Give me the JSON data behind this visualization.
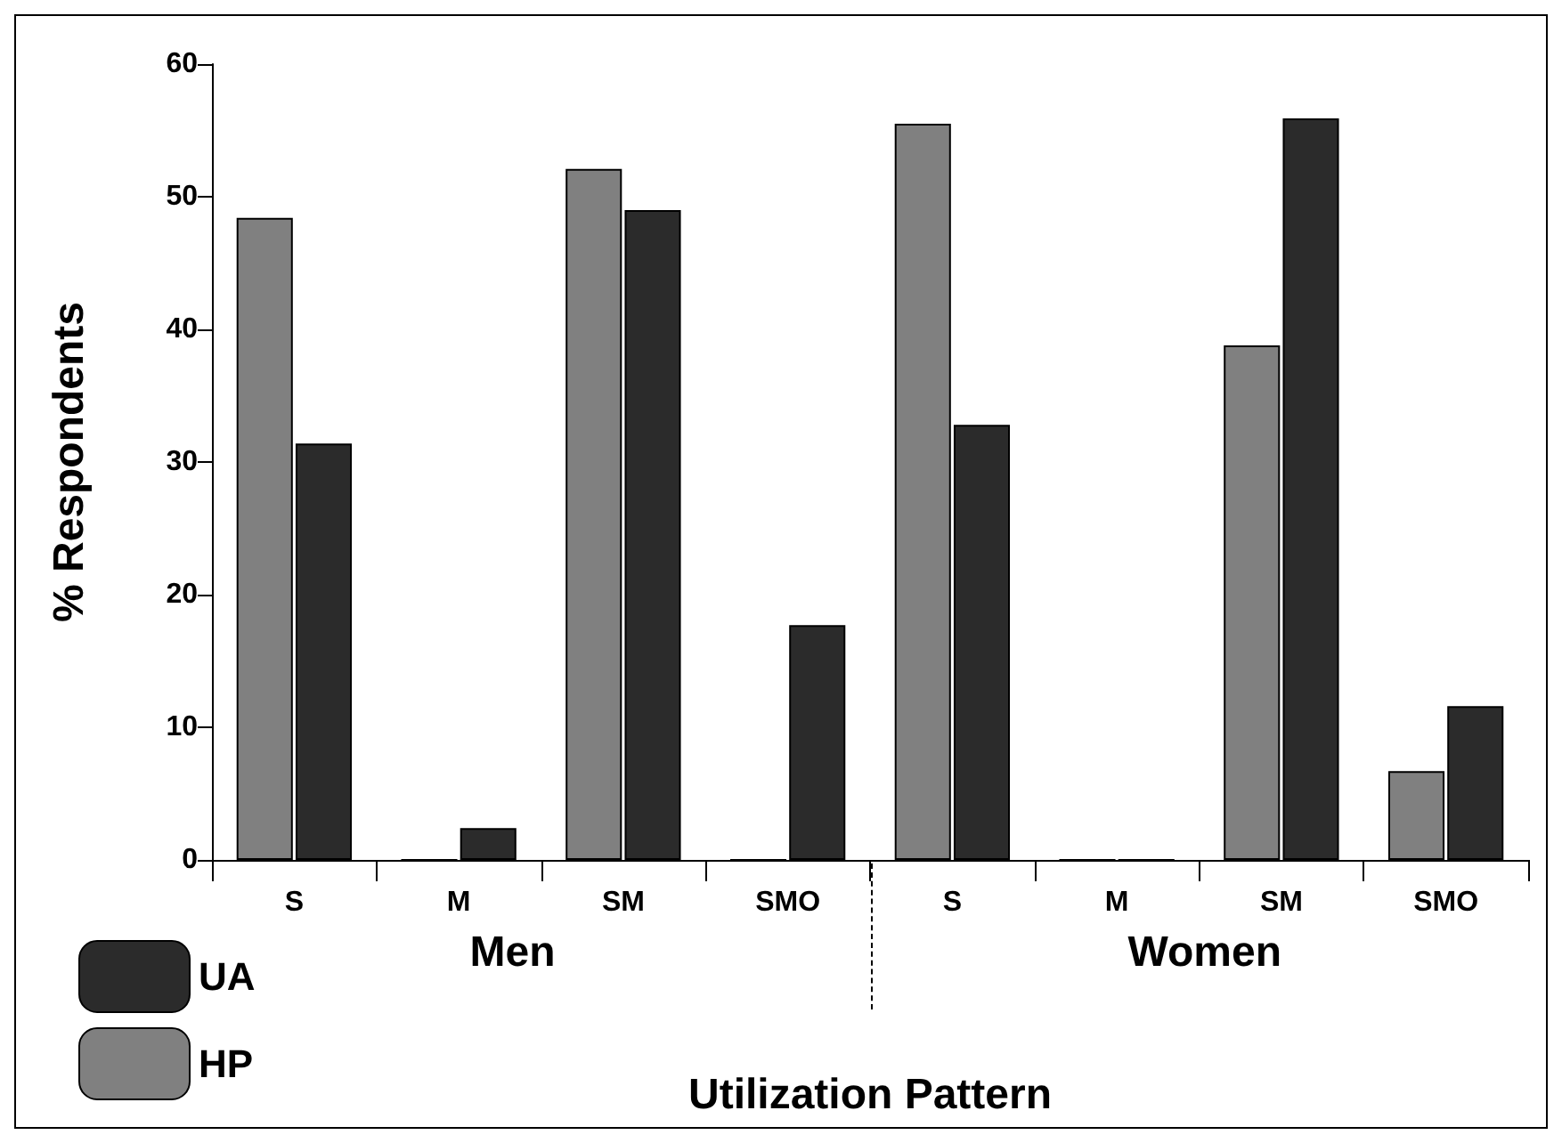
{
  "chart_data": {
    "type": "bar",
    "xlabel": "Utilization Pattern",
    "ylabel": "% Respondents",
    "categories": [
      "S",
      "M",
      "SM",
      "SMO",
      "S",
      "M",
      "SM",
      "SMO"
    ],
    "series": [
      {
        "name": "HP",
        "color": "#808080",
        "values": [
          48.4,
          0,
          52.1,
          0,
          55.5,
          0,
          38.8,
          6.7
        ]
      },
      {
        "name": "UA",
        "color": "#2b2b2b",
        "values": [
          31.4,
          2.4,
          49.0,
          17.7,
          32.8,
          0,
          55.9,
          11.6
        ]
      }
    ],
    "annotations": [
      "Men",
      "Women"
    ],
    "ylim": [
      0,
      60
    ],
    "yticks": [
      0,
      10,
      20,
      30,
      40,
      50,
      60
    ],
    "grid": false,
    "legend": "bottom left"
  }
}
